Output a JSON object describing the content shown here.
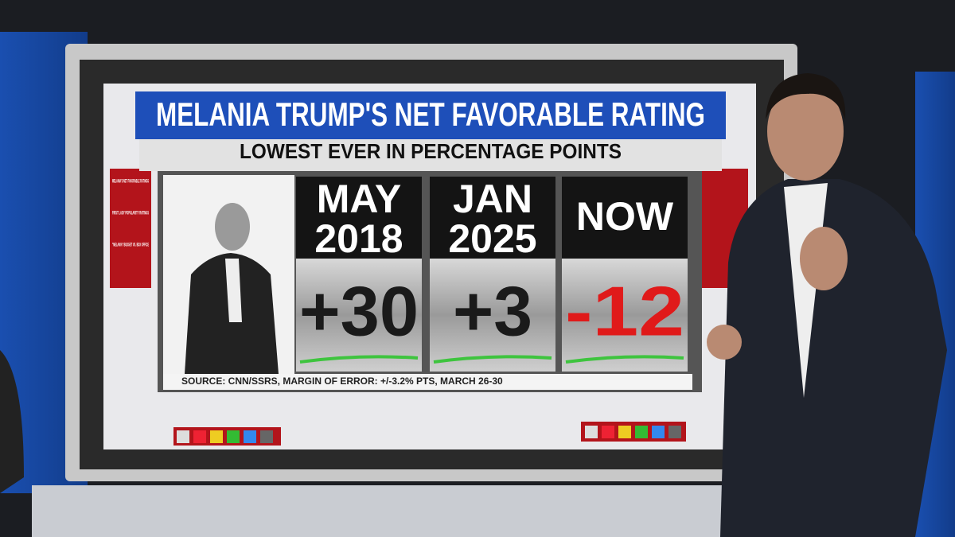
{
  "header": {
    "title": "MELANIA TRUMP'S NET FAVORABLE RATING",
    "subtitle": "LOWEST EVER IN PERCENTAGE POINTS"
  },
  "columns": [
    {
      "period": [
        "MAY",
        "2018"
      ],
      "value": "+30"
    },
    {
      "period": [
        "JAN",
        "2025"
      ],
      "value": "+3"
    },
    {
      "period": [
        "NOW"
      ],
      "value": "-12"
    }
  ],
  "source": "SOURCE: CNN/SSRS, MARGIN OF ERROR: +/-3.2% PTS, MARCH 26-30",
  "sidebar": [
    "MELANIA'S NET FAVORABLE RATINGS",
    "FIRST LADY POPULARITY RATINGS",
    "\"MELANIA\" BUDGET VS. BOX OFFICE"
  ]
}
